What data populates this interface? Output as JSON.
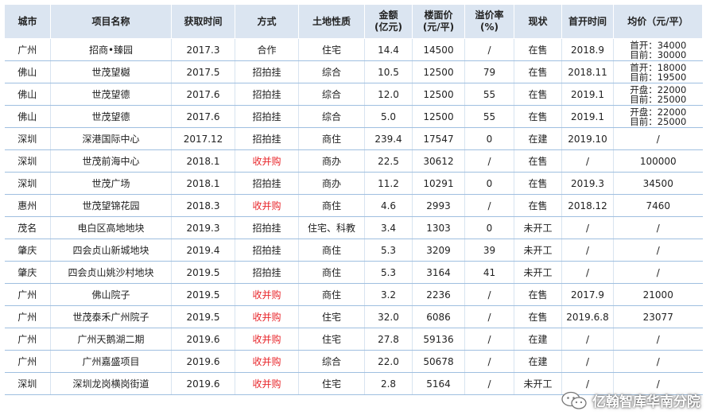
{
  "headers": [
    "城市",
    "项目名称",
    "获取时间",
    "方式",
    "土地性质",
    [
      "金额",
      "(亿元)"
    ],
    [
      "楼面价",
      "(元/平)"
    ],
    [
      "溢价率",
      "(%)"
    ],
    "现状",
    "首开时间",
    "均价（元/平）"
  ],
  "rows": [
    [
      "广州",
      "招商•臻园",
      "2017.3",
      "合作",
      "住宅",
      "14.4",
      "14500",
      "/",
      "在售",
      "2018.9",
      [
        "首开：34000",
        "目前：30000"
      ]
    ],
    [
      "佛山",
      "世茂望樾",
      "2017.5",
      "招拍挂",
      "综合",
      "10.5",
      "12500",
      "79",
      "在售",
      "2018.11",
      [
        "首开：18000",
        "目前：19500"
      ]
    ],
    [
      "佛山",
      "世茂望德",
      "2017.6",
      "招拍挂",
      "综合",
      "12.0",
      "12500",
      "55",
      "在售",
      "2019.1",
      [
        "开盘：22000",
        "目前：25000"
      ]
    ],
    [
      "佛山",
      "世茂望德",
      "2017.6",
      "招拍挂",
      "综合",
      "5.0",
      "12500",
      "55",
      "在售",
      "2019.1",
      [
        "开盘：22000",
        "目前：25000"
      ]
    ],
    [
      "深圳",
      "深港国际中心",
      "2017.12",
      "招拍挂",
      "商住",
      "239.4",
      "17547",
      "0",
      "在建",
      "2019.10",
      "/"
    ],
    [
      "深圳",
      "世茂前海中心",
      "2018.1",
      "收并购",
      "商办",
      "22.5",
      "30612",
      "/",
      "在售",
      "/",
      "100000"
    ],
    [
      "深圳",
      "世茂广场",
      "2018.1",
      "招拍挂",
      "商办",
      "11.2",
      "10291",
      "0",
      "在售",
      "2019.3",
      "34500"
    ],
    [
      "惠州",
      "世茂望锦花园",
      "2018.3",
      "收并购",
      "商住",
      "4.6",
      "2993",
      "/",
      "在售",
      "2018.12",
      "7460"
    ],
    [
      "茂名",
      "电白区高地地块",
      "2019.3",
      "招拍挂",
      "住宅、科教",
      "3.4",
      "1303",
      "0",
      "未开工",
      "/",
      "/"
    ],
    [
      "肇庆",
      "四会贞山新城地块",
      "2019.4",
      "招拍挂",
      "商住",
      "5.3",
      "3209",
      "39",
      "未开工",
      "/",
      "/"
    ],
    [
      "肇庆",
      "四会贞山姚沙村地块",
      "2019.5",
      "招拍挂",
      "商住",
      "5.3",
      "3164",
      "41",
      "未开工",
      "/",
      "/"
    ],
    [
      "广州",
      "佛山院子",
      "2019.5",
      "收并购",
      "商住",
      "3.2",
      "2236",
      "/",
      "在售",
      "2017.9",
      "21000"
    ],
    [
      "广州",
      "世茂泰禾广州院子",
      "2019.5",
      "收并购",
      "住宅",
      "32.0",
      "6086",
      "/",
      "在售",
      "2019.6.8",
      "23077"
    ],
    [
      "广州",
      "广州天鹅湖二期",
      "2019.6",
      "收并购",
      "住宅",
      "27.8",
      "59136",
      "/",
      "在建",
      "/",
      "/"
    ],
    [
      "广州",
      "广州嘉盛项目",
      "2019.6",
      "收并购",
      "综合",
      "22.0",
      "50678",
      "/",
      "在建",
      "/",
      "/"
    ],
    [
      "深圳",
      "深圳龙岗横岗街道",
      "2019.6",
      "收并购",
      "住宅",
      "2.8",
      "5164",
      "/",
      "未开工",
      "/",
      "/"
    ]
  ],
  "highlight_value": "收并购",
  "highlight_color": "#e8262b",
  "header_color": "#dbe5f1",
  "watermark": "亿翰智库华南分院",
  "watermark_icon": "wechat-icon"
}
